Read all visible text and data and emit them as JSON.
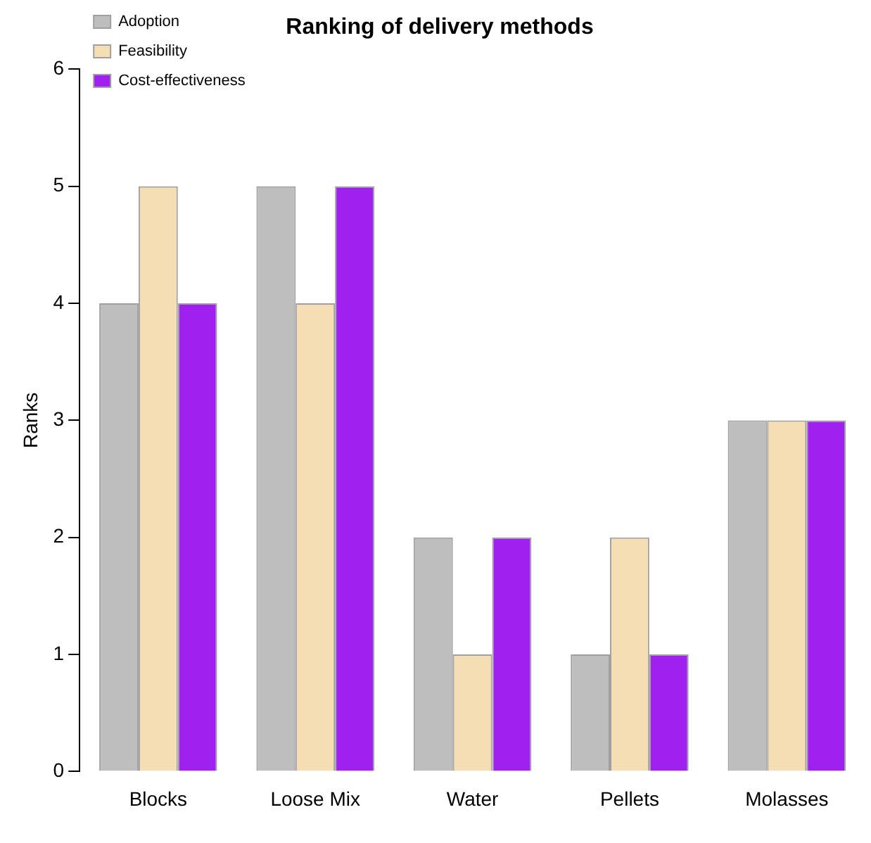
{
  "chart_data": {
    "type": "bar",
    "title": "Ranking of delivery methods",
    "ylabel": "Ranks",
    "categories": [
      "Blocks",
      "Loose Mix",
      "Water",
      "Pellets",
      "Molasses"
    ],
    "series": [
      {
        "name": "Adoption",
        "color": "#bebebe",
        "values": [
          4,
          5,
          2,
          1,
          3
        ]
      },
      {
        "name": "Feasibility",
        "color": "#f5deb3",
        "values": [
          5,
          4,
          1,
          2,
          3
        ]
      },
      {
        "name": "Cost-effectiveness",
        "color": "#a020f0",
        "values": [
          4,
          5,
          2,
          1,
          3
        ]
      }
    ],
    "ylim": [
      0,
      6
    ],
    "yticks": [
      0,
      1,
      2,
      3,
      4,
      5,
      6
    ],
    "grid": false,
    "legend": "top left"
  }
}
